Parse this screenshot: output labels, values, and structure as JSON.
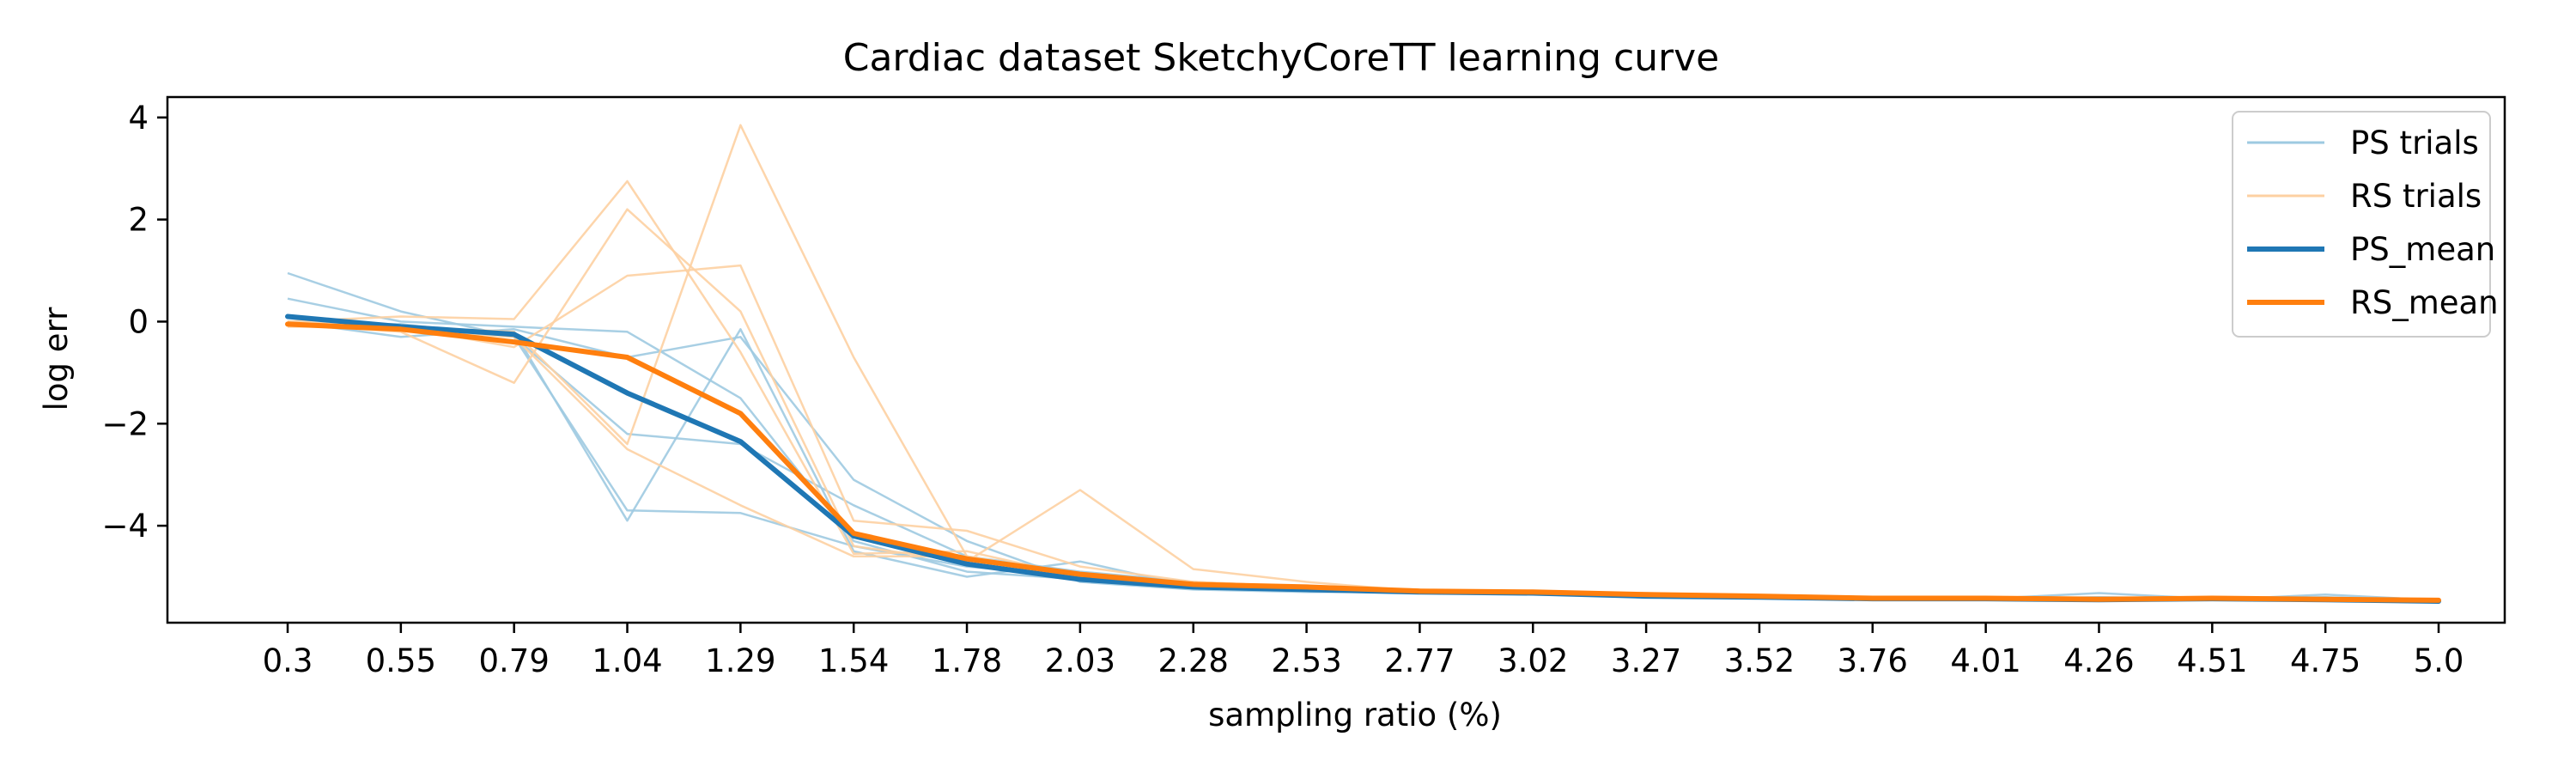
{
  "chart_data": {
    "type": "line",
    "title": "Cardiac dataset SketchyCoreTT learning curve",
    "xlabel": "sampling ratio (%)",
    "ylabel": "log err",
    "x_ticks": [
      "0.3",
      "0.55",
      "0.79",
      "1.04",
      "1.29",
      "1.54",
      "1.78",
      "2.03",
      "2.28",
      "2.53",
      "2.77",
      "3.02",
      "3.27",
      "3.52",
      "3.76",
      "4.01",
      "4.26",
      "4.51",
      "4.75",
      "5.0"
    ],
    "y_ticks": [
      4,
      2,
      0,
      -2,
      -4
    ],
    "ylim": [
      -5.9,
      4.4
    ],
    "grid": false,
    "legend_position": "top-right",
    "legend": [
      "PS trials",
      "RS trials",
      "PS_mean",
      "RS_mean"
    ],
    "colors": {
      "ps_trials": "#9ecae1",
      "rs_trials": "#fdd0a2",
      "ps_mean": "#1f77b4",
      "rs_mean": "#ff7f0e"
    },
    "series": [
      {
        "name": "PS_mean",
        "values": [
          0.1,
          -0.1,
          -0.25,
          -1.4,
          -2.35,
          -4.2,
          -4.75,
          -5.05,
          -5.2,
          -5.25,
          -5.3,
          -5.32,
          -5.38,
          -5.4,
          -5.43,
          -5.43,
          -5.45,
          -5.43,
          -5.45,
          -5.48
        ]
      },
      {
        "name": "RS_mean",
        "values": [
          -0.05,
          -0.15,
          -0.4,
          -0.7,
          -1.8,
          -4.15,
          -4.65,
          -4.95,
          -5.15,
          -5.2,
          -5.28,
          -5.3,
          -5.35,
          -5.38,
          -5.42,
          -5.42,
          -5.44,
          -5.42,
          -5.44,
          -5.46
        ]
      }
    ],
    "ps_trials": [
      [
        0.95,
        0.2,
        -0.3,
        -3.7,
        -3.75,
        -4.4,
        -4.8,
        -5.0,
        -5.2,
        -5.25,
        -5.3,
        -5.32,
        -5.38,
        -5.4,
        -5.43,
        -5.43,
        -5.4,
        -5.43,
        -5.45,
        -5.5
      ],
      [
        0.45,
        0.0,
        -0.1,
        -0.2,
        -1.5,
        -4.3,
        -4.9,
        -5.05,
        -5.15,
        -5.25,
        -5.28,
        -5.3,
        -5.35,
        -5.4,
        -5.42,
        -5.43,
        -5.32,
        -5.43,
        -5.4,
        -5.48
      ],
      [
        0.1,
        -0.15,
        -0.2,
        -3.9,
        -0.15,
        -4.5,
        -5.0,
        -4.7,
        -5.2,
        -5.2,
        -5.3,
        -5.35,
        -5.38,
        -5.38,
        -5.43,
        -5.45,
        -5.45,
        -5.45,
        -5.35,
        -5.46
      ],
      [
        0.0,
        -0.3,
        -0.15,
        -0.7,
        -0.3,
        -3.1,
        -4.3,
        -5.1,
        -5.25,
        -5.3,
        -5.3,
        -5.32,
        -5.4,
        -5.42,
        -5.45,
        -5.42,
        -5.47,
        -5.44,
        -5.47,
        -5.5
      ],
      [
        -0.05,
        -0.05,
        -0.3,
        -2.2,
        -2.4,
        -3.6,
        -4.6,
        -4.9,
        -5.1,
        -5.2,
        -5.32,
        -5.32,
        -5.38,
        -5.4,
        -5.44,
        -5.44,
        -5.42,
        -5.42,
        -5.45,
        -5.48
      ]
    ],
    "rs_trials": [
      [
        0.0,
        0.1,
        0.05,
        2.75,
        -0.6,
        -4.55,
        -4.5,
        -5.0,
        -5.1,
        -5.2,
        -5.3,
        -5.3,
        -5.35,
        -5.38,
        -5.42,
        -5.42,
        -5.45,
        -5.42,
        -5.44,
        -5.46
      ],
      [
        -0.05,
        -0.2,
        -1.2,
        2.2,
        0.2,
        -4.4,
        -4.7,
        -3.3,
        -4.85,
        -5.1,
        -5.28,
        -5.3,
        -5.32,
        -5.38,
        -5.4,
        -5.42,
        -5.44,
        -5.4,
        -5.42,
        -5.44
      ],
      [
        0.0,
        -0.1,
        -0.5,
        0.9,
        1.1,
        -3.9,
        -4.1,
        -4.8,
        -5.1,
        -5.2,
        -5.25,
        -5.32,
        -5.35,
        -5.38,
        -5.42,
        -5.42,
        -5.42,
        -5.42,
        -5.42,
        -5.46
      ],
      [
        -0.05,
        -0.15,
        -0.3,
        -2.5,
        -3.6,
        -4.6,
        -4.6,
        -5.0,
        -5.2,
        -5.25,
        -5.3,
        -5.3,
        -5.36,
        -5.4,
        -5.43,
        -5.43,
        -5.45,
        -5.43,
        -5.46,
        -5.47
      ],
      [
        -0.1,
        -0.1,
        -0.2,
        -2.4,
        3.85,
        -0.7,
        -4.6,
        -4.95,
        -5.15,
        -5.2,
        -5.3,
        -5.3,
        -5.35,
        -5.4,
        -5.42,
        -5.42,
        -5.44,
        -5.42,
        -5.44,
        -5.46
      ]
    ]
  }
}
